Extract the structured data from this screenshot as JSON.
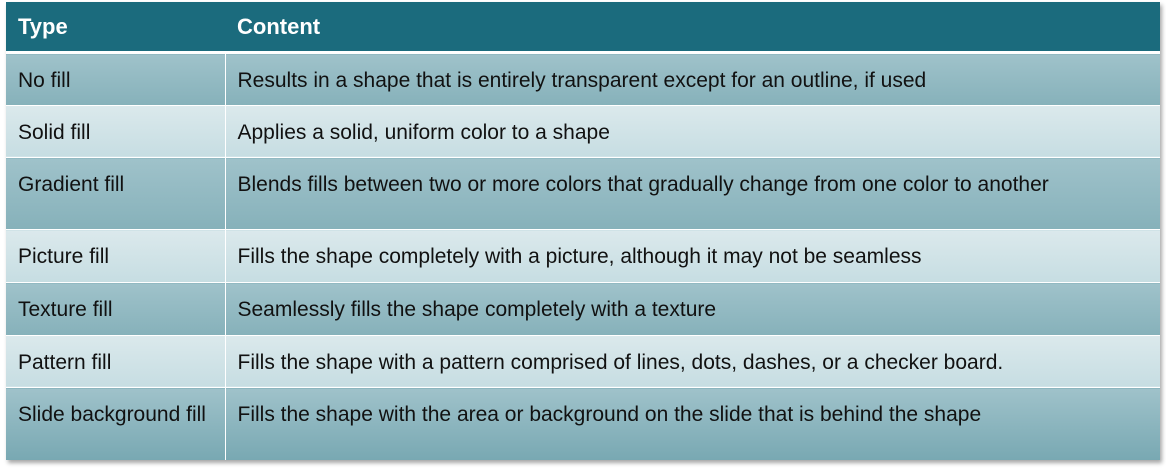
{
  "table": {
    "headers": [
      "Type",
      "Content"
    ],
    "rows": [
      {
        "type": "No fill",
        "content": "Results in a shape that is entirely transparent except for an outline, if used"
      },
      {
        "type": "Solid fill",
        "content": "Applies a solid, uniform color to a shape"
      },
      {
        "type": "Gradient fill",
        "content": "Blends fills between two or more colors that gradually change from one color to another"
      },
      {
        "type": "Picture fill",
        "content": "Fills the shape completely with a picture, although it may not be seamless"
      },
      {
        "type": "Texture fill",
        "content": "Seamlessly fills the shape completely with a texture"
      },
      {
        "type": "Pattern fill",
        "content": "Fills the shape with a pattern comprised of lines, dots, dashes, or a checker board."
      },
      {
        "type": "Slide background fill",
        "content": "Fills the shape with the area or background on the slide that is behind the shape"
      }
    ]
  },
  "colors": {
    "header_bg": "#1b6b7d",
    "row_dark": "#93bac3",
    "row_light": "#d3e5e9"
  }
}
